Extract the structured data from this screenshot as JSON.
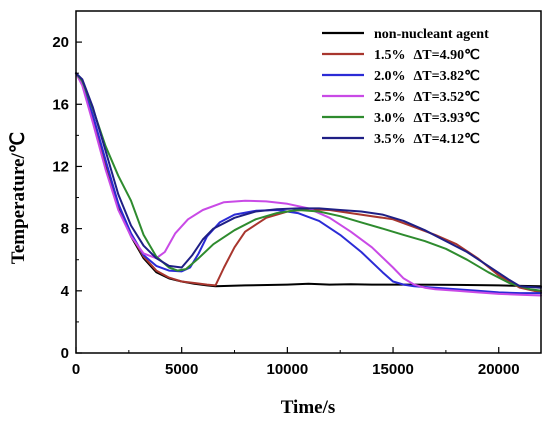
{
  "chart_data": {
    "type": "line",
    "xlabel": "Time/s",
    "ylabel": "Temperature/℃",
    "xlim": [
      0,
      22000
    ],
    "ylim": [
      0,
      22
    ],
    "xticks": [
      0,
      5000,
      10000,
      15000,
      20000
    ],
    "yticks": [
      0,
      4,
      8,
      12,
      16,
      20
    ],
    "grid": false,
    "legend_position": "top-right",
    "series": [
      {
        "name": "non-nucleant agent",
        "legend": {
          "prefix": "non-nucleant agent",
          "dt_label": "",
          "dt_value": ""
        },
        "color": "#000000",
        "x": [
          0,
          300,
          800,
          1400,
          2000,
          2600,
          3200,
          3800,
          4400,
          5000,
          5600,
          6200,
          6600,
          8000,
          10000,
          11000,
          12000,
          13000,
          14000,
          16000,
          18000,
          20000,
          22000
        ],
        "y": [
          18.0,
          17.3,
          15.0,
          12.0,
          9.4,
          7.5,
          6.1,
          5.2,
          4.8,
          4.6,
          4.45,
          4.35,
          4.3,
          4.35,
          4.4,
          4.45,
          4.4,
          4.42,
          4.4,
          4.4,
          4.38,
          4.35,
          4.3
        ]
      },
      {
        "name": "1.5%",
        "legend": {
          "prefix": "1.5%",
          "dt_label": "ΔT",
          "dt_value": "=4.90℃"
        },
        "color": "#a8362e",
        "x": [
          0,
          300,
          800,
          1400,
          2000,
          2600,
          3200,
          3800,
          4400,
          5000,
          5600,
          6200,
          6600,
          7000,
          7500,
          8000,
          9000,
          10000,
          11000,
          12000,
          13000,
          14000,
          15000,
          16000,
          17000,
          18000,
          19000,
          20000,
          21000,
          22000
        ],
        "y": [
          18.0,
          17.3,
          15.2,
          12.3,
          9.6,
          7.6,
          6.2,
          5.3,
          4.85,
          4.6,
          4.5,
          4.4,
          4.35,
          5.5,
          6.8,
          7.8,
          8.7,
          9.1,
          9.25,
          9.2,
          9.0,
          8.8,
          8.6,
          8.1,
          7.6,
          7.0,
          6.1,
          5.0,
          4.2,
          3.9
        ]
      },
      {
        "name": "2.0%",
        "legend": {
          "prefix": "2.0%",
          "dt_label": "ΔT",
          "dt_value": "=3.82℃"
        },
        "color": "#2b2bd6",
        "x": [
          0,
          300,
          800,
          1400,
          2000,
          2600,
          3200,
          3800,
          4400,
          5000,
          5400,
          5800,
          6200,
          6800,
          7500,
          8500,
          9500,
          10500,
          11500,
          12500,
          13500,
          14500,
          15000,
          15500,
          16000,
          17000,
          18000,
          19000,
          20000,
          21000,
          22000
        ],
        "y": [
          18.0,
          17.4,
          15.3,
          12.4,
          9.6,
          7.7,
          6.3,
          5.6,
          5.3,
          5.25,
          5.5,
          6.4,
          7.5,
          8.4,
          8.9,
          9.15,
          9.2,
          9.0,
          8.5,
          7.6,
          6.5,
          5.2,
          4.6,
          4.4,
          4.3,
          4.2,
          4.1,
          4.0,
          3.9,
          3.85,
          3.85
        ]
      },
      {
        "name": "2.5%",
        "legend": {
          "prefix": "2.5%",
          "dt_label": "ΔT",
          "dt_value": "=3.52℃"
        },
        "color": "#c94ae6",
        "x": [
          0,
          300,
          800,
          1400,
          2000,
          2600,
          3200,
          3800,
          4200,
          4700,
          5300,
          6000,
          7000,
          8000,
          9000,
          10000,
          11000,
          12000,
          13000,
          14000,
          15000,
          15500,
          16000,
          16500,
          17000,
          18000,
          19000,
          20000,
          21000,
          22000
        ],
        "y": [
          18.0,
          17.2,
          14.8,
          11.8,
          9.2,
          7.5,
          6.4,
          6.1,
          6.5,
          7.7,
          8.6,
          9.2,
          9.7,
          9.8,
          9.75,
          9.6,
          9.3,
          8.7,
          7.8,
          6.8,
          5.5,
          4.8,
          4.4,
          4.2,
          4.1,
          4.0,
          3.9,
          3.8,
          3.75,
          3.7
        ]
      },
      {
        "name": "3.0%",
        "legend": {
          "prefix": "3.0%",
          "dt_label": "ΔT",
          "dt_value": "=3.93℃"
        },
        "color": "#2e8b2e",
        "x": [
          0,
          300,
          800,
          1400,
          2000,
          2600,
          3200,
          3800,
          4400,
          4800,
          5200,
          5800,
          6500,
          7500,
          8500,
          9500,
          10500,
          11500,
          12500,
          13500,
          14500,
          15500,
          16500,
          17500,
          18500,
          19500,
          20500,
          21500,
          22000
        ],
        "y": [
          18.0,
          17.5,
          15.7,
          13.3,
          11.4,
          9.8,
          7.6,
          6.2,
          5.5,
          5.3,
          5.4,
          6.1,
          7.0,
          7.9,
          8.6,
          9.0,
          9.2,
          9.1,
          8.8,
          8.4,
          8.0,
          7.6,
          7.2,
          6.7,
          6.0,
          5.2,
          4.5,
          4.1,
          4.0
        ]
      },
      {
        "name": "3.5%",
        "legend": {
          "prefix": "3.5%",
          "dt_label": "ΔT",
          "dt_value": "=4.12℃"
        },
        "color": "#1f1f85",
        "x": [
          0,
          300,
          800,
          1400,
          2000,
          2600,
          3200,
          3800,
          4400,
          5000,
          5500,
          6000,
          6500,
          7500,
          8500,
          9500,
          10500,
          11500,
          12500,
          13500,
          14500,
          15500,
          16500,
          17500,
          18500,
          19500,
          20500,
          21000,
          22000
        ],
        "y": [
          18.0,
          17.6,
          15.8,
          13.0,
          10.2,
          8.2,
          6.9,
          6.1,
          5.6,
          5.5,
          6.3,
          7.3,
          8.0,
          8.7,
          9.1,
          9.25,
          9.3,
          9.3,
          9.2,
          9.1,
          8.9,
          8.5,
          7.9,
          7.2,
          6.5,
          5.6,
          4.7,
          4.3,
          4.2
        ]
      }
    ]
  }
}
